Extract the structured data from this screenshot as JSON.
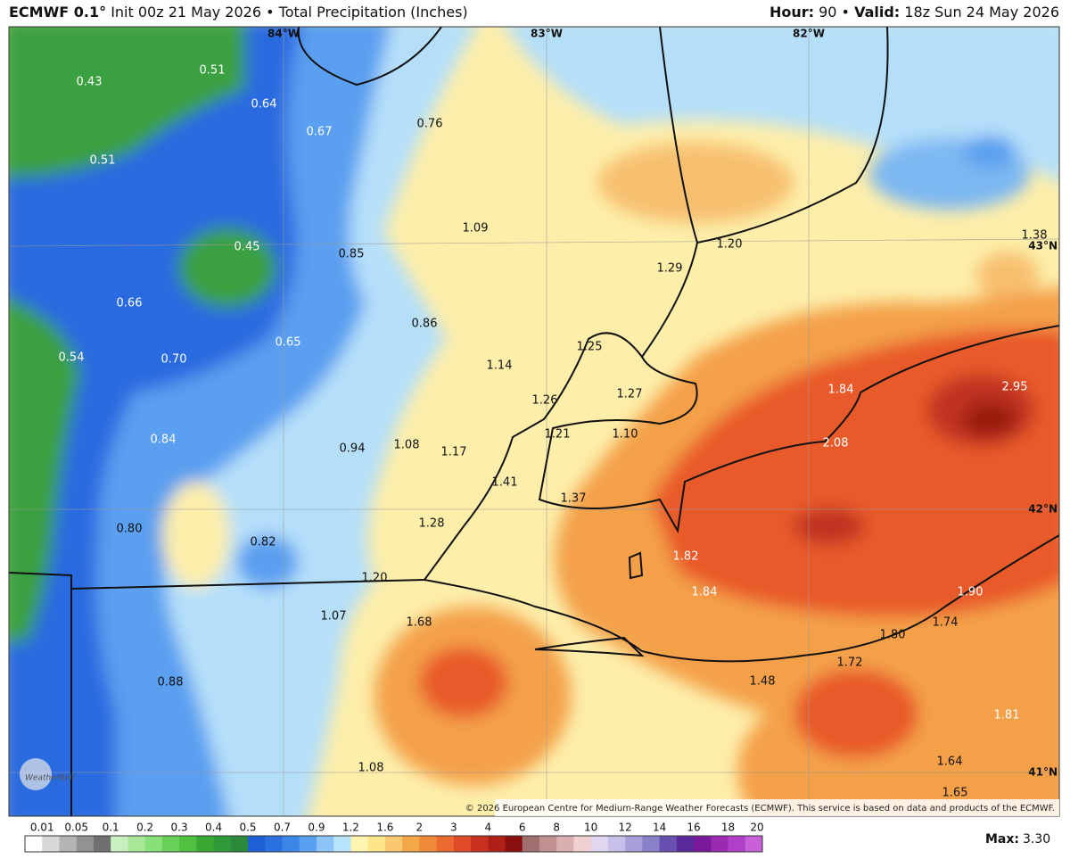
{
  "header": {
    "title": "ECMWF 0.1°",
    "subtitle": "Init 00z 21 May 2026 • Total Precipitation (Inches)",
    "right": [
      {
        "text": "Hour:",
        "bold": true
      },
      {
        "text": "90 •",
        "bold": false
      },
      {
        "text": "Valid:",
        "bold": true
      },
      {
        "text": "18z Sun 24 May 2026",
        "bold": false
      }
    ]
  },
  "map": {
    "labels": [
      "0.43",
      "0.51",
      "0.64",
      "0.67",
      "0.76",
      "0.51",
      "0.45",
      "1.09",
      "0.85",
      "1.20",
      "1.29",
      "1.38",
      "0.66",
      "0.86",
      "0.65",
      "1.25",
      "0.54",
      "0.70",
      "1.14",
      "1.84",
      "2.95",
      "1.27",
      "1.26",
      "1.21",
      "1.10",
      "0.84",
      "0.94",
      "1.08",
      "1.17",
      "2.08",
      "1.41",
      "1.37",
      "1.28",
      "0.80",
      "0.82",
      "1.82",
      "1.20",
      "1.84",
      "1.90",
      "1.07",
      "1.68",
      "1.74",
      "1.80",
      "1.72",
      "1.48",
      "0.88",
      "1.81",
      "1.64",
      "1.08",
      "1.65"
    ],
    "grid_labels": [
      "84°W",
      "83°W",
      "82°W",
      "43°N",
      "42°N",
      "41°N"
    ],
    "credit": "© 2026 European Centre for Medium-Range Weather Forecasts (ECMWF). This service is based on data and products of the ECMWF.",
    "logo": "WeatherBell"
  },
  "colorbar": {
    "labels": [
      "0.01",
      "0.05",
      "0.1",
      "0.2",
      "0.3",
      "0.4",
      "0.5",
      "0.7",
      "0.9",
      "1.2",
      "1.6",
      "2",
      "3",
      "4",
      "6",
      "8",
      "10",
      "12",
      "14",
      "16",
      "18",
      "20"
    ],
    "colors": [
      "#ffffff",
      "#d8d8d8",
      "#b4b4b4",
      "#929292",
      "#707070",
      "#c8f0c0",
      "#a8e898",
      "#88e078",
      "#68d058",
      "#50c040",
      "#3aa832",
      "#2e9a3a",
      "#2a8a3a",
      "#1f5fd6",
      "#2a70e0",
      "#3c86e8",
      "#5aa0f0",
      "#8cc4f8",
      "#b8e4fb",
      "#fff4b0",
      "#fde68a",
      "#f9c870",
      "#f5a848",
      "#f08a3a",
      "#ea6a30",
      "#e04a28",
      "#c83020",
      "#b02018",
      "#8a1010",
      "#a07070",
      "#c09090",
      "#d8b0b0",
      "#f0d0d0",
      "#e0d8f0",
      "#c8c0e8",
      "#a8a0d8",
      "#8880c8",
      "#6850b0",
      "#5a2a9a",
      "#7a1a9a",
      "#9a2ab0",
      "#b040c8",
      "#c860d8"
    ]
  },
  "footer": {
    "max_label": "Max:",
    "max_value": "3.30"
  }
}
